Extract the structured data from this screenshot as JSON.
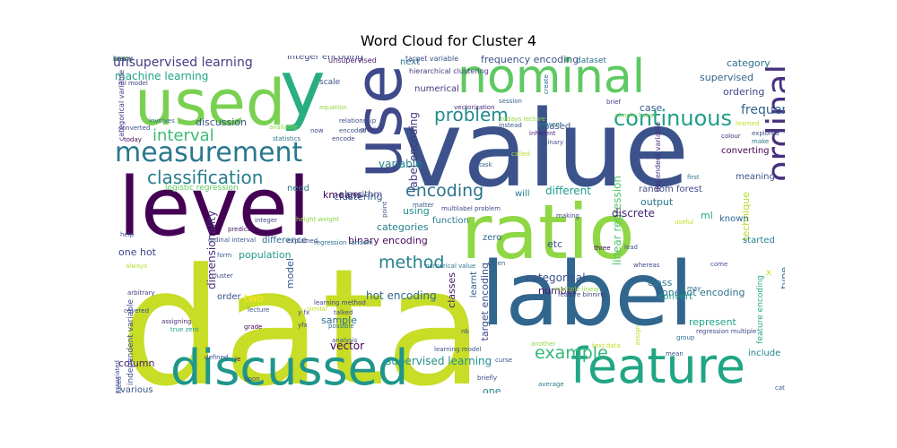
{
  "title": "Word Cloud for Cluster 4",
  "words": [
    {
      "text": "data",
      "color": "#c7dd26",
      "vertical": false
    },
    {
      "text": "value",
      "color": "#3b528b",
      "vertical": false
    },
    {
      "text": "label",
      "color": "#31668e",
      "vertical": false
    },
    {
      "text": "level",
      "color": "#440154",
      "vertical": false
    },
    {
      "text": "ratio",
      "color": "#8fd744",
      "vertical": false
    },
    {
      "text": "use",
      "color": "#3e4a89",
      "vertical": true
    },
    {
      "text": "y",
      "color": "#29af7f",
      "vertical": false
    },
    {
      "text": "used",
      "color": "#7ad151",
      "vertical": false
    },
    {
      "text": "nominal",
      "color": "#5ec962",
      "vertical": false
    },
    {
      "text": "ordinal",
      "color": "#46307e",
      "vertical": true
    },
    {
      "text": "feature",
      "color": "#21a685",
      "vertical": false
    },
    {
      "text": "discussed",
      "color": "#1f968b",
      "vertical": false
    },
    {
      "text": "measurement",
      "color": "#2a788e",
      "vertical": false
    },
    {
      "text": "classification",
      "color": "#287d8e",
      "vertical": false
    },
    {
      "text": "continuous",
      "color": "#1f9e89",
      "vertical": false
    },
    {
      "text": "problem",
      "color": "#23898e",
      "vertical": false
    },
    {
      "text": "interval",
      "color": "#3fbc73",
      "vertical": false
    },
    {
      "text": "encoding",
      "color": "#2c728e",
      "vertical": false
    },
    {
      "text": "method",
      "color": "#26828e",
      "vertical": false
    },
    {
      "text": "example",
      "color": "#35b779",
      "vertical": false
    },
    {
      "text": "unsupervised learning",
      "color": "#433e85",
      "vertical": false
    },
    {
      "text": "machine learning",
      "color": "#20a486",
      "vertical": false
    },
    {
      "text": "frequency encoding",
      "color": "#3b528b",
      "vertical": false
    },
    {
      "text": "integer encoding",
      "color": "#414487",
      "vertical": false
    },
    {
      "text": "category",
      "color": "#2d708e",
      "vertical": false
    },
    {
      "text": "supervised",
      "color": "#33638d",
      "vertical": false
    },
    {
      "text": "ordering",
      "color": "#3f4788",
      "vertical": false
    },
    {
      "text": "label encoding",
      "color": "#443983",
      "vertical": true
    },
    {
      "text": "linear regression",
      "color": "#52c569",
      "vertical": true
    },
    {
      "text": "variable",
      "color": "#25838e",
      "vertical": false
    },
    {
      "text": "based",
      "color": "#38598c",
      "vertical": false
    },
    {
      "text": "different",
      "color": "#1e9b8a",
      "vertical": false
    },
    {
      "text": "discrete",
      "color": "#482374",
      "vertical": false
    },
    {
      "text": "output",
      "color": "#29798e",
      "vertical": false
    },
    {
      "text": "random forest",
      "color": "#3e4989",
      "vertical": false
    },
    {
      "text": "logistic regression",
      "color": "#5ec962",
      "vertical": false
    },
    {
      "text": "clustering",
      "color": "#355e8d",
      "vertical": false
    },
    {
      "text": "kmeans",
      "color": "#440154",
      "vertical": false
    },
    {
      "text": "algorithm",
      "color": "#3e4a89",
      "vertical": false
    },
    {
      "text": "using",
      "color": "#20928c",
      "vertical": false
    },
    {
      "text": "categories",
      "color": "#27808e",
      "vertical": false
    },
    {
      "text": "binary encoding",
      "color": "#46075a",
      "vertical": false
    },
    {
      "text": "population",
      "color": "#1f988b",
      "vertical": false
    },
    {
      "text": "difference",
      "color": "#2f6c8e",
      "vertical": false
    },
    {
      "text": "one hot",
      "color": "#414487",
      "vertical": false
    },
    {
      "text": "dimensionality",
      "color": "#472c7a",
      "vertical": true
    },
    {
      "text": "model",
      "color": "#38588c",
      "vertical": true
    },
    {
      "text": "categorical",
      "color": "#3b528b",
      "vertical": false
    },
    {
      "text": "class",
      "color": "#2a788e",
      "vertical": false
    },
    {
      "text": "onehot encoding",
      "color": "#2d718e",
      "vertical": false
    },
    {
      "text": "number",
      "color": "#471365",
      "vertical": false
    },
    {
      "text": "hot encoding",
      "color": "#31678e",
      "vertical": false
    },
    {
      "text": "target encoding",
      "color": "#3e4c8a",
      "vertical": true
    },
    {
      "text": "classes",
      "color": "#481769",
      "vertical": true
    },
    {
      "text": "learnt",
      "color": "#35608d",
      "vertical": true
    },
    {
      "text": "etc",
      "color": "#3a548c",
      "vertical": false
    },
    {
      "text": "zero",
      "color": "#31688e",
      "vertical": false
    },
    {
      "text": "function",
      "color": "#277f8e",
      "vertical": false
    },
    {
      "text": "will",
      "color": "#26818e",
      "vertical": false
    },
    {
      "text": "ml",
      "color": "#22a785",
      "vertical": false
    },
    {
      "text": "technique",
      "color": "#b5de2b",
      "vertical": true
    },
    {
      "text": "started",
      "color": "#24868e",
      "vertical": false
    },
    {
      "text": "convert",
      "color": "#1f9a8a",
      "vertical": false
    },
    {
      "text": "case",
      "color": "#34618d",
      "vertical": false
    },
    {
      "text": "type",
      "color": "#2c728e",
      "vertical": true
    },
    {
      "text": "represent",
      "color": "#1fa188",
      "vertical": false
    },
    {
      "text": "include",
      "color": "#25848e",
      "vertical": false
    },
    {
      "text": "sample",
      "color": "#2e6e8e",
      "vertical": false
    },
    {
      "text": "vector",
      "color": "#440154",
      "vertical": false
    },
    {
      "text": "column",
      "color": "#482173",
      "vertical": false
    },
    {
      "text": "two",
      "color": "#fde725",
      "vertical": false
    },
    {
      "text": "order",
      "color": "#3b528b",
      "vertical": false
    },
    {
      "text": "supervised learning",
      "color": "#21918c",
      "vertical": false
    },
    {
      "text": "clustering",
      "color": "#1e9c89",
      "vertical": false
    },
    {
      "text": "various",
      "color": "#38598c",
      "vertical": false
    },
    {
      "text": "one",
      "color": "#27808e",
      "vertical": false
    },
    {
      "text": "discussion",
      "color": "#3a538b",
      "vertical": false
    },
    {
      "text": "scale",
      "color": "#3b518b",
      "vertical": false
    },
    {
      "text": "next",
      "color": "#2c738e",
      "vertical": false
    },
    {
      "text": "numerical",
      "color": "#453781",
      "vertical": false
    },
    {
      "text": "dataset",
      "color": "#2d718e",
      "vertical": false
    },
    {
      "text": "converting",
      "color": "#440154",
      "vertical": false
    },
    {
      "text": "meaning",
      "color": "#3a548c",
      "vertical": false
    },
    {
      "text": "known",
      "color": "#31678e",
      "vertical": false
    },
    {
      "text": "need",
      "color": "#2a788e",
      "vertical": false
    },
    {
      "text": "frequency",
      "color": "#33638d",
      "vertical": false
    },
    {
      "text": "x",
      "color": "#c2df23",
      "vertical": false
    },
    {
      "text": "feature encoding",
      "color": "#25ab82",
      "vertical": true
    },
    {
      "text": "independent variable",
      "color": "#3e4989",
      "vertical": true
    },
    {
      "text": "categorical variable",
      "color": "#46327e",
      "vertical": true
    },
    {
      "text": "dependent variable",
      "color": "#472d7b",
      "vertical": true
    },
    {
      "text": "hierarchical clustering",
      "color": "#453882",
      "vertical": false
    },
    {
      "text": "target variable",
      "color": "#3b528b",
      "vertical": false
    },
    {
      "text": "unsupervised",
      "color": "#481467",
      "vertical": false
    },
    {
      "text": "ml model",
      "color": "#414487",
      "vertical": false
    },
    {
      "text": "session",
      "color": "#355f8d",
      "vertical": false
    },
    {
      "text": "todays lecture",
      "color": "#8fd744",
      "vertical": false
    },
    {
      "text": "simple linear",
      "color": "#7ad151",
      "vertical": false
    },
    {
      "text": "learned",
      "color": "#c2df23",
      "vertical": false
    },
    {
      "text": "explored",
      "color": "#3e4a89",
      "vertical": false
    },
    {
      "text": "make",
      "color": "#2c728e",
      "vertical": false
    },
    {
      "text": "colour",
      "color": "#46307e",
      "vertical": false
    },
    {
      "text": "vectorization",
      "color": "#472a7a",
      "vertical": false
    },
    {
      "text": "brief",
      "color": "#433e85",
      "vertical": false
    },
    {
      "text": "present",
      "color": "#2a788e",
      "vertical": false
    },
    {
      "text": "inherent",
      "color": "#481c6e",
      "vertical": false
    },
    {
      "text": "binary",
      "color": "#3e4c8a",
      "vertical": false
    },
    {
      "text": "called",
      "color": "#b5de2b",
      "vertical": false
    },
    {
      "text": "task",
      "color": "#355e8d",
      "vertical": false
    },
    {
      "text": "instead",
      "color": "#3b528b",
      "vertical": false
    },
    {
      "text": "create",
      "color": "#2d708e",
      "vertical": true
    },
    {
      "text": "available",
      "color": "#8fd744",
      "vertical": false
    },
    {
      "text": "relationship",
      "color": "#3e4989",
      "vertical": false
    },
    {
      "text": "encoded",
      "color": "#3b528b",
      "vertical": false
    },
    {
      "text": "encode",
      "color": "#414487",
      "vertical": false
    },
    {
      "text": "statistics",
      "color": "#2c728e",
      "vertical": false
    },
    {
      "text": "involves",
      "color": "#31688e",
      "vertical": false
    },
    {
      "text": "converted",
      "color": "#3e4a89",
      "vertical": false
    },
    {
      "text": "today",
      "color": "#440154",
      "vertical": false
    },
    {
      "text": "now",
      "color": "#3e4989",
      "vertical": false
    },
    {
      "text": "predict",
      "color": "#433e85",
      "vertical": false
    },
    {
      "text": "equation",
      "color": "#8fd744",
      "vertical": false
    },
    {
      "text": "point",
      "color": "#3b528b",
      "vertical": true
    },
    {
      "text": "multilabel problem",
      "color": "#3e4a89",
      "vertical": false
    },
    {
      "text": "matter",
      "color": "#3b528b",
      "vertical": false
    },
    {
      "text": "integer",
      "color": "#414487",
      "vertical": false
    },
    {
      "text": "prediction",
      "color": "#471365",
      "vertical": false
    },
    {
      "text": "help",
      "color": "#3b528b",
      "vertical": false
    },
    {
      "text": "ordinal interval",
      "color": "#3b528b",
      "vertical": false
    },
    {
      "text": "form",
      "color": "#355e8d",
      "vertical": false
    },
    {
      "text": "regression random",
      "color": "#2c728e",
      "vertical": false
    },
    {
      "text": "explained",
      "color": "#3e4989",
      "vertical": false
    },
    {
      "text": "numerical value",
      "color": "#2a788e",
      "vertical": false
    },
    {
      "text": "given",
      "color": "#355f8d",
      "vertical": false
    },
    {
      "text": "height weight",
      "color": "#8fd744",
      "vertical": false
    },
    {
      "text": "always",
      "color": "#b5de2b",
      "vertical": false
    },
    {
      "text": "arbitrary",
      "color": "#443983",
      "vertical": false
    },
    {
      "text": "covered",
      "color": "#3e4a89",
      "vertical": false
    },
    {
      "text": "assigning",
      "color": "#472c7a",
      "vertical": false
    },
    {
      "text": "true zero",
      "color": "#20a486",
      "vertical": false
    },
    {
      "text": "lecture",
      "color": "#3b528b",
      "vertical": false
    },
    {
      "text": "grade",
      "color": "#440154",
      "vertical": false
    },
    {
      "text": "talked",
      "color": "#3e4989",
      "vertical": false
    },
    {
      "text": "possible",
      "color": "#2c728e",
      "vertical": false
    },
    {
      "text": "analysis",
      "color": "#3b528b",
      "vertical": false
    },
    {
      "text": "learning method",
      "color": "#414487",
      "vertical": false
    },
    {
      "text": "similar",
      "color": "#c2df23",
      "vertical": false
    },
    {
      "text": "y fx",
      "color": "#3b528b",
      "vertical": false
    },
    {
      "text": "yfx",
      "color": "#414487",
      "vertical": false
    },
    {
      "text": "cluster",
      "color": "#3e4989",
      "vertical": false
    },
    {
      "text": "associated",
      "color": "#3b528b",
      "vertical": true
    },
    {
      "text": "ie",
      "color": "#440154",
      "vertical": false
    },
    {
      "text": "upon",
      "color": "#3e4a89",
      "vertical": false
    },
    {
      "text": "defined",
      "color": "#3b528b",
      "vertical": false
    },
    {
      "text": "introduced",
      "color": "#3e4989",
      "vertical": true
    },
    {
      "text": "nb",
      "color": "#414487",
      "vertical": false
    },
    {
      "text": "learning model",
      "color": "#3b528b",
      "vertical": false
    },
    {
      "text": "multiple linear",
      "color": "#8fd744",
      "vertical": false
    },
    {
      "text": "assign",
      "color": "#b5de2b",
      "vertical": true
    },
    {
      "text": "text data",
      "color": "#c2df23",
      "vertical": false
    },
    {
      "text": "mean",
      "color": "#3b528b",
      "vertical": false
    },
    {
      "text": "group",
      "color": "#2c728e",
      "vertical": false
    },
    {
      "text": "regression multiple",
      "color": "#3e4989",
      "vertical": false
    },
    {
      "text": "categorical data",
      "color": "#3b528b",
      "vertical": false
    },
    {
      "text": "average",
      "color": "#2a788e",
      "vertical": false
    },
    {
      "text": "another",
      "color": "#8fd744",
      "vertical": false
    },
    {
      "text": "curse",
      "color": "#3b528b",
      "vertical": false
    },
    {
      "text": "briefly",
      "color": "#3e4989",
      "vertical": false
    },
    {
      "text": "feature binning",
      "color": "#414487",
      "vertical": false
    },
    {
      "text": "three",
      "color": "#440154",
      "vertical": false
    },
    {
      "text": "come",
      "color": "#3b528b",
      "vertical": false
    },
    {
      "text": "may",
      "color": "#2c728e",
      "vertical": false
    },
    {
      "text": "useful",
      "color": "#c2df23",
      "vertical": false
    },
    {
      "text": "relation",
      "color": "#8fd744",
      "vertical": false
    },
    {
      "text": "lead",
      "color": "#3b528b",
      "vertical": false
    },
    {
      "text": "whereas",
      "color": "#3e4989",
      "vertical": false
    },
    {
      "text": "making",
      "color": "#414487",
      "vertical": false
    },
    {
      "text": "first",
      "color": "#2c728e",
      "vertical": false
    },
    {
      "text": "many",
      "color": "#3b528b",
      "vertical": false
    },
    {
      "text": "work",
      "color": "#8fd744",
      "vertical": false
    },
    {
      "text": "know",
      "color": "#3e4989",
      "vertical": false
    },
    {
      "text": "see",
      "color": "#3b528b",
      "vertical": false
    }
  ]
}
